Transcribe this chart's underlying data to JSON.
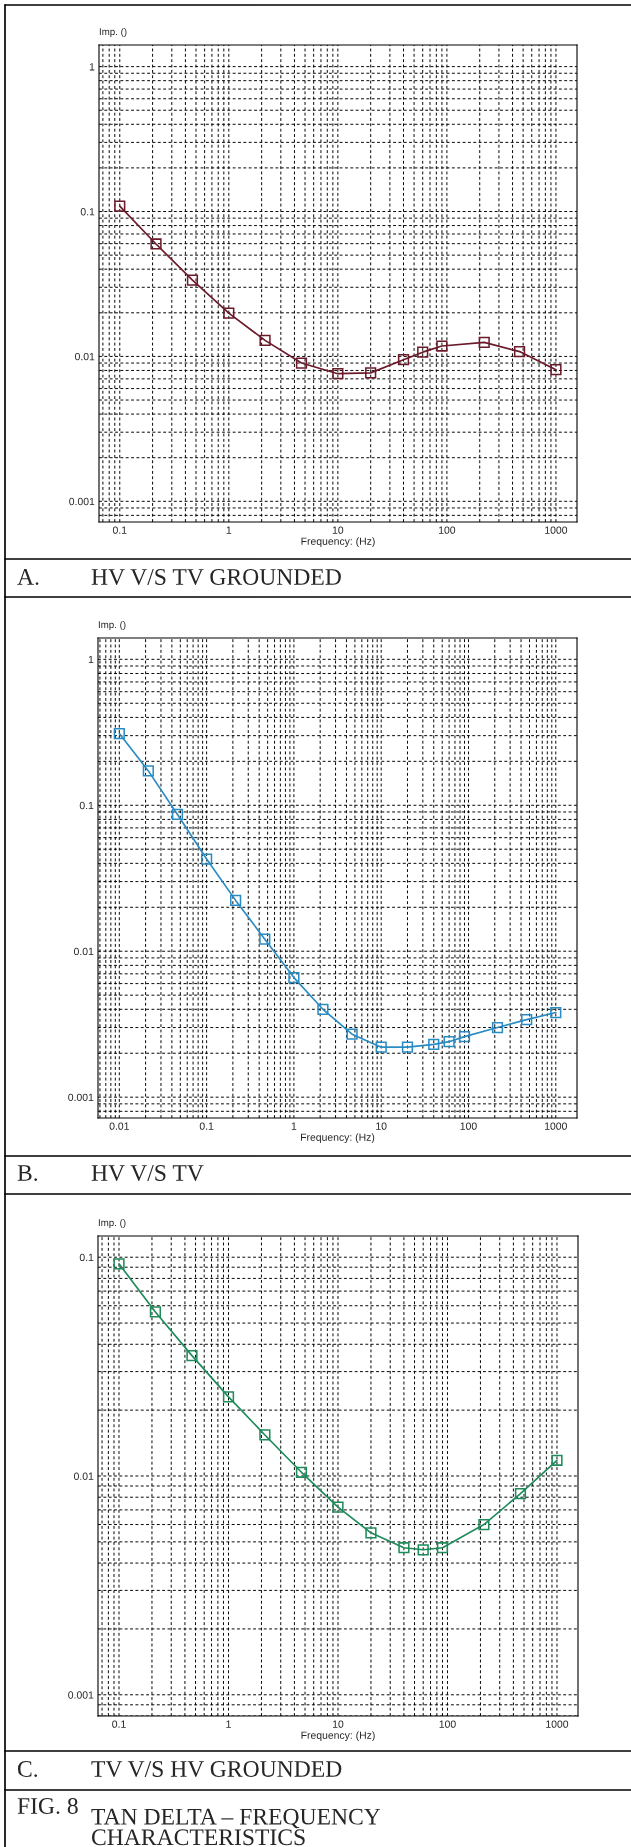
{
  "chart_data": [
    {
      "type": "line",
      "title": "HV V/S TV GROUNDED",
      "xlabel": "Frequency: (Hz)",
      "ylabel": "Imp. ()",
      "log": "xy",
      "grid": true,
      "marker": "square",
      "line_style": "solid",
      "annotations": [
        "A."
      ],
      "xlim": [
        0.0645,
        1560
      ],
      "ylim": [
        0.00072,
        1.41
      ],
      "xticks": [
        0.1,
        1,
        10,
        100,
        1000
      ],
      "yticks": [
        0.001,
        0.01,
        0.1,
        1
      ],
      "x": [
        0.1,
        0.215,
        0.464,
        1,
        2.15,
        4.64,
        10,
        20,
        40,
        60,
        90,
        220,
        464,
        1000
      ],
      "series": [
        {
          "color": "#6b1a2a",
          "values": [
            0.109,
            0.0597,
            0.0336,
            0.0199,
            0.0129,
            0.009,
            0.0076,
            0.0077,
            0.0095,
            0.0107,
            0.0118,
            0.0125,
            0.0108,
            0.0081
          ]
        }
      ]
    },
    {
      "type": "line",
      "title": "HV V/S TV",
      "xlabel": "Frequency: (Hz)",
      "ylabel": "Imp. ()",
      "log": "xy",
      "grid": true,
      "marker": "square",
      "line_style": "solid",
      "annotations": [
        "B."
      ],
      "xlim": [
        0.0057,
        1750
      ],
      "ylim": [
        0.00072,
        1.4
      ],
      "xticks": [
        0.01,
        0.1,
        1,
        10,
        100,
        1000
      ],
      "yticks": [
        0.001,
        0.01,
        0.1,
        1
      ],
      "x": [
        0.01,
        0.0215,
        0.0464,
        0.1,
        0.215,
        0.464,
        1,
        2.15,
        4.64,
        10,
        20,
        40,
        60,
        90,
        215,
        464,
        1000
      ],
      "series": [
        {
          "color": "#2a8cc4",
          "values": [
            0.31,
            0.172,
            0.0865,
            0.0428,
            0.0223,
            0.0121,
            0.0066,
            0.004,
            0.0027,
            0.0022,
            0.0022,
            0.0023,
            0.0024,
            0.0026,
            0.003,
            0.0034,
            0.0038
          ]
        }
      ]
    },
    {
      "type": "line",
      "title": "TV V/S HV GROUNDED",
      "xlabel": "Frequency: (Hz)",
      "ylabel": "Imp. ()",
      "log": "xy",
      "grid": true,
      "marker": "square",
      "line_style": "solid",
      "annotations": [
        "C.",
        "FIG. 8",
        "TAN DELTA – FREQUENCY\nCHARACTERISTICS"
      ],
      "xlim": [
        0.0643,
        1556
      ],
      "ylim": [
        0.0008,
        0.125
      ],
      "xticks": [
        0.1,
        1,
        10,
        100,
        1000
      ],
      "yticks": [
        0.001,
        0.01,
        0.1
      ],
      "x": [
        0.1,
        0.215,
        0.464,
        1,
        2.15,
        4.64,
        10,
        20,
        40,
        60,
        90,
        215,
        464,
        1000
      ],
      "series": [
        {
          "color": "#1f8a5a",
          "values": [
            0.0933,
            0.0562,
            0.0355,
            0.023,
            0.0154,
            0.0104,
            0.0072,
            0.0055,
            0.0047,
            0.0046,
            0.0047,
            0.006,
            0.0083,
            0.0118
          ]
        }
      ]
    }
  ]
}
